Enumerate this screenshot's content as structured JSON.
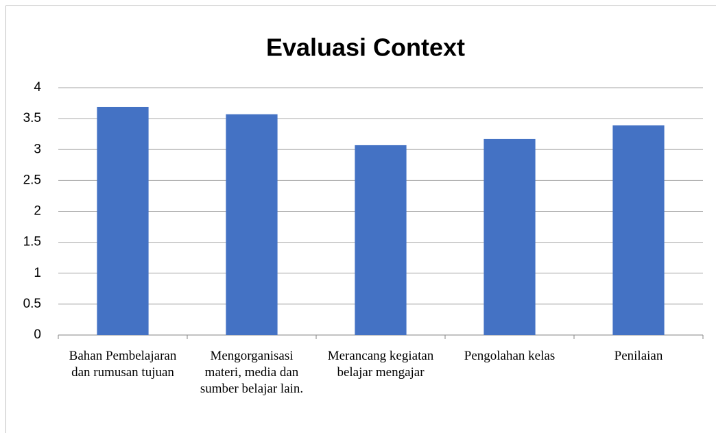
{
  "chart_data": {
    "type": "bar",
    "title": "Evaluasi Context",
    "categories": [
      "Bahan Pembelajaran dan rumusan tujuan",
      "Mengorganisasi materi, media dan sumber belajar lain.",
      "Merancang kegiatan belajar mengajar",
      "Pengolahan kelas",
      "Penilaian"
    ],
    "values": [
      3.69,
      3.57,
      3.07,
      3.17,
      3.39
    ],
    "color": "#4472c4",
    "ylim": [
      0,
      4
    ],
    "yticks": [
      0,
      0.5,
      1,
      1.5,
      2,
      2.5,
      3,
      3.5,
      4
    ],
    "grid": true
  }
}
